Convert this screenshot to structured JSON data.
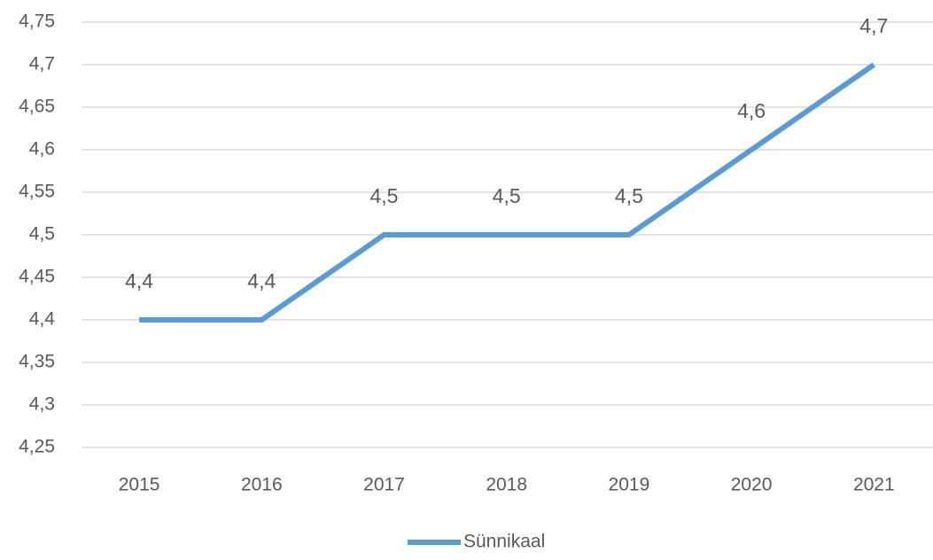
{
  "chart_data": {
    "type": "line",
    "categories": [
      "2015",
      "2016",
      "2017",
      "2018",
      "2019",
      "2020",
      "2021"
    ],
    "series": [
      {
        "name": "Sünnikaal",
        "color": "#5b9bd5",
        "values": [
          4.4,
          4.4,
          4.5,
          4.5,
          4.5,
          4.6,
          4.7
        ],
        "value_labels": [
          "4,4",
          "4,4",
          "4,5",
          "4,5",
          "4,5",
          "4,6",
          "4,7"
        ]
      }
    ],
    "ylim": [
      4.25,
      4.75
    ],
    "yticks": [
      {
        "value": 4.25,
        "label": "4,25"
      },
      {
        "value": 4.3,
        "label": "4,3"
      },
      {
        "value": 4.35,
        "label": "4,35"
      },
      {
        "value": 4.4,
        "label": "4,4"
      },
      {
        "value": 4.45,
        "label": "4,45"
      },
      {
        "value": 4.5,
        "label": "4,5"
      },
      {
        "value": 4.55,
        "label": "4,55"
      },
      {
        "value": 4.6,
        "label": "4,6"
      },
      {
        "value": 4.65,
        "label": "4,65"
      },
      {
        "value": 4.7,
        "label": "4,7"
      },
      {
        "value": 4.75,
        "label": "4,75"
      }
    ],
    "grid": true,
    "legend": "bottom"
  }
}
